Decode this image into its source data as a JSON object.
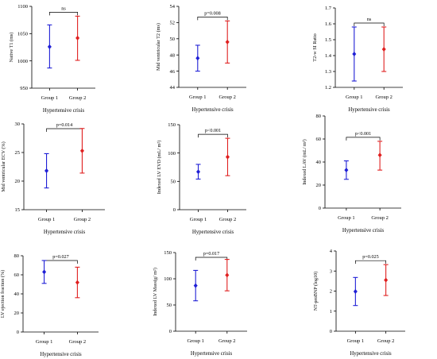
{
  "colors": {
    "group1": "#1f1fd6",
    "group2": "#e02020",
    "axis": "#000000"
  },
  "chart_data": [
    {
      "type": "errorbar",
      "ylabel": "Native T1 (ms)",
      "xlabel": "Hypertensive crisis",
      "categories": [
        "Group 1",
        "Group 2"
      ],
      "ylim": [
        950,
        1100
      ],
      "yticks": [
        "950",
        "1000",
        "1050",
        "1100"
      ],
      "sig_label": "ns",
      "series": [
        {
          "mean": 1026,
          "low": 987,
          "high": 1066
        },
        {
          "mean": 1042,
          "low": 1001,
          "high": 1082
        }
      ]
    },
    {
      "type": "errorbar",
      "ylabel": "Mid ventricular T2 (ms)",
      "xlabel": "Hypertensive crisis",
      "categories": [
        "Group 1",
        "Group 2"
      ],
      "ylim": [
        44,
        54
      ],
      "yticks": [
        "44",
        "46",
        "48",
        "50",
        "52",
        "54"
      ],
      "sig_label": "p=0.008",
      "series": [
        {
          "mean": 47.6,
          "low": 46.0,
          "high": 49.2
        },
        {
          "mean": 49.6,
          "low": 47.0,
          "high": 52.2
        }
      ]
    },
    {
      "type": "errorbar",
      "ylabel": "T2-w SI Ratio",
      "xlabel": "Hypertensive crisis",
      "categories": [
        "Group 1",
        "Group 2"
      ],
      "ylim": [
        1.2,
        1.7
      ],
      "yticks": [
        "1.2",
        "1.3",
        "1.4",
        "1.5",
        "1.6",
        "1.7"
      ],
      "sig_label": "ns",
      "series": [
        {
          "mean": 1.41,
          "low": 1.24,
          "high": 1.58
        },
        {
          "mean": 1.44,
          "low": 1.3,
          "high": 1.58
        }
      ]
    },
    {
      "type": "errorbar",
      "ylabel": "Mid ventricular ECV (%)",
      "xlabel": "Hypertensive crisis",
      "categories": [
        "Group 1",
        "Group 2"
      ],
      "ylim": [
        15,
        30
      ],
      "yticks": [
        "15",
        "20",
        "25",
        "30"
      ],
      "sig_label": "p=0.014",
      "series": [
        {
          "mean": 21.8,
          "low": 18.8,
          "high": 24.8
        },
        {
          "mean": 25.3,
          "low": 21.4,
          "high": 29.2
        }
      ]
    },
    {
      "type": "errorbar",
      "ylabel": "Indexed LV EVD (mL/ m²)",
      "xlabel": "Hypertensive crisis",
      "categories": [
        "Group 1",
        "Group 2"
      ],
      "ylim": [
        0,
        150
      ],
      "yticks": [
        "0",
        "50",
        "100",
        "150"
      ],
      "sig_label": "p<0.001",
      "series": [
        {
          "mean": 67,
          "low": 54,
          "high": 80
        },
        {
          "mean": 93,
          "low": 60,
          "high": 126
        }
      ]
    },
    {
      "type": "errorbar",
      "ylabel": "Indexed LAV (mL/ m²)",
      "xlabel": "Hypertensive crisis",
      "categories": [
        "Group 1",
        "Group 2"
      ],
      "ylim": [
        0,
        80
      ],
      "yticks": [
        "0",
        "20",
        "40",
        "60",
        "80"
      ],
      "sig_label": "p<0.001",
      "series": [
        {
          "mean": 33,
          "low": 25,
          "high": 41
        },
        {
          "mean": 46,
          "low": 33,
          "high": 58
        }
      ]
    },
    {
      "type": "errorbar",
      "ylabel": "LV ejection fraction (%)",
      "xlabel": "Hypertensive crisis",
      "categories": [
        "Group 1",
        "Group 2"
      ],
      "ylim": [
        0,
        80
      ],
      "yticks": [
        "0",
        "20",
        "40",
        "60",
        "80"
      ],
      "sig_label": "p=0.027",
      "series": [
        {
          "mean": 63,
          "low": 51,
          "high": 75
        },
        {
          "mean": 52,
          "low": 36,
          "high": 68
        }
      ]
    },
    {
      "type": "errorbar",
      "ylabel": "Indexed LV Mass(g/ m²)",
      "xlabel": "Hypertensive crisis",
      "categories": [
        "Group 1",
        "Group 2"
      ],
      "ylim": [
        0,
        150
      ],
      "yticks": [
        "0",
        "50",
        "100",
        "150"
      ],
      "sig_label": "p=0.017",
      "series": [
        {
          "mean": 87,
          "low": 58,
          "high": 116
        },
        {
          "mean": 107,
          "low": 77,
          "high": 137
        }
      ]
    },
    {
      "type": "errorbar",
      "ylabel": "NT-proBNP (log10)",
      "xlabel": "Hypertensive crisis",
      "categories": [
        "Group 1",
        "Group 2"
      ],
      "ylim": [
        0,
        4
      ],
      "yticks": [
        "0",
        "1",
        "2",
        "3",
        "4"
      ],
      "sig_label": "p=0.025",
      "series": [
        {
          "mean": 1.98,
          "low": 1.28,
          "high": 2.68
        },
        {
          "mean": 2.55,
          "low": 1.78,
          "high": 3.32
        }
      ]
    }
  ]
}
